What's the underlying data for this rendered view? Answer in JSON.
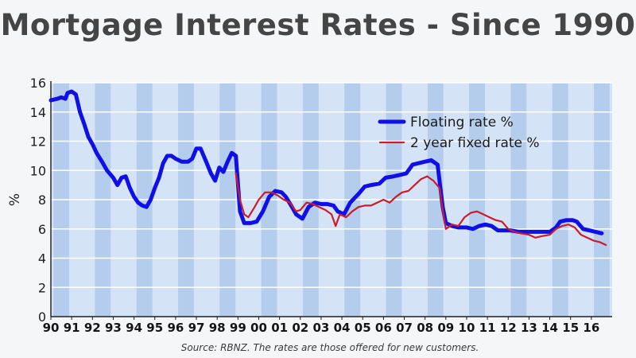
{
  "chart_data": {
    "type": "line",
    "title": "Mortgage Interest Rates - Since 1990",
    "ylabel": "%",
    "xlabel": "",
    "ylim": [
      0,
      16
    ],
    "xlim": [
      1990,
      2017
    ],
    "y_ticks": [
      "0",
      "2",
      "4",
      "6",
      "8",
      "10",
      "12",
      "14",
      "16"
    ],
    "x_tick_labels": [
      "90",
      "91",
      "92",
      "93",
      "94",
      "95",
      "96",
      "97",
      "98",
      "99",
      "00",
      "01",
      "02",
      "03",
      "04",
      "05",
      "06",
      "07",
      "08",
      "09",
      "10",
      "11",
      "12",
      "13",
      "14",
      "15",
      "16"
    ],
    "grid": true,
    "legend_position": "top-right",
    "source": "Source: RBNZ. The rates are those offered for new customers.",
    "series": [
      {
        "name": "Floating rate %",
        "color": "#1010e6",
        "points": [
          [
            1990.0,
            14.8
          ],
          [
            1990.3,
            14.9
          ],
          [
            1990.5,
            15.0
          ],
          [
            1990.7,
            14.9
          ],
          [
            1990.8,
            15.3
          ],
          [
            1991.0,
            15.4
          ],
          [
            1991.2,
            15.2
          ],
          [
            1991.4,
            14.0
          ],
          [
            1991.6,
            13.2
          ],
          [
            1991.8,
            12.3
          ],
          [
            1992.0,
            11.8
          ],
          [
            1992.2,
            11.2
          ],
          [
            1992.5,
            10.5
          ],
          [
            1992.7,
            10.0
          ],
          [
            1993.0,
            9.5
          ],
          [
            1993.2,
            9.0
          ],
          [
            1993.4,
            9.5
          ],
          [
            1993.6,
            9.6
          ],
          [
            1993.8,
            8.8
          ],
          [
            1994.0,
            8.2
          ],
          [
            1994.2,
            7.8
          ],
          [
            1994.4,
            7.6
          ],
          [
            1994.6,
            7.5
          ],
          [
            1994.8,
            8.0
          ],
          [
            1995.0,
            8.8
          ],
          [
            1995.2,
            9.5
          ],
          [
            1995.4,
            10.5
          ],
          [
            1995.6,
            11.0
          ],
          [
            1995.8,
            11.0
          ],
          [
            1996.0,
            10.8
          ],
          [
            1996.3,
            10.6
          ],
          [
            1996.6,
            10.6
          ],
          [
            1996.8,
            10.8
          ],
          [
            1997.0,
            11.5
          ],
          [
            1997.2,
            11.5
          ],
          [
            1997.5,
            10.5
          ],
          [
            1997.7,
            9.8
          ],
          [
            1997.9,
            9.3
          ],
          [
            1998.1,
            10.2
          ],
          [
            1998.3,
            9.9
          ],
          [
            1998.5,
            10.6
          ],
          [
            1998.7,
            11.2
          ],
          [
            1998.9,
            11.0
          ],
          [
            1999.1,
            7.2
          ],
          [
            1999.3,
            6.4
          ],
          [
            1999.6,
            6.4
          ],
          [
            1999.9,
            6.5
          ],
          [
            2000.2,
            7.2
          ],
          [
            2000.5,
            8.2
          ],
          [
            2000.8,
            8.6
          ],
          [
            2001.1,
            8.5
          ],
          [
            2001.3,
            8.2
          ],
          [
            2001.6,
            7.5
          ],
          [
            2001.8,
            7.0
          ],
          [
            2002.1,
            6.7
          ],
          [
            2002.4,
            7.5
          ],
          [
            2002.7,
            7.8
          ],
          [
            2003.0,
            7.7
          ],
          [
            2003.3,
            7.7
          ],
          [
            2003.6,
            7.6
          ],
          [
            2003.8,
            7.2
          ],
          [
            2004.1,
            7.0
          ],
          [
            2004.4,
            7.8
          ],
          [
            2004.8,
            8.4
          ],
          [
            2005.1,
            8.9
          ],
          [
            2005.4,
            9.0
          ],
          [
            2005.8,
            9.1
          ],
          [
            2006.1,
            9.5
          ],
          [
            2006.5,
            9.6
          ],
          [
            2006.8,
            9.7
          ],
          [
            2007.1,
            9.8
          ],
          [
            2007.4,
            10.4
          ],
          [
            2007.7,
            10.5
          ],
          [
            2008.0,
            10.6
          ],
          [
            2008.3,
            10.7
          ],
          [
            2008.6,
            10.4
          ],
          [
            2008.85,
            7.5
          ],
          [
            2009.0,
            6.4
          ],
          [
            2009.3,
            6.2
          ],
          [
            2009.6,
            6.1
          ],
          [
            2010.0,
            6.1
          ],
          [
            2010.3,
            6.0
          ],
          [
            2010.6,
            6.2
          ],
          [
            2010.9,
            6.3
          ],
          [
            2011.2,
            6.2
          ],
          [
            2011.5,
            5.9
          ],
          [
            2011.8,
            5.9
          ],
          [
            2012.1,
            5.9
          ],
          [
            2012.5,
            5.8
          ],
          [
            2013.0,
            5.8
          ],
          [
            2013.5,
            5.8
          ],
          [
            2014.0,
            5.8
          ],
          [
            2014.3,
            6.1
          ],
          [
            2014.5,
            6.5
          ],
          [
            2014.8,
            6.6
          ],
          [
            2015.1,
            6.6
          ],
          [
            2015.3,
            6.5
          ],
          [
            2015.6,
            6.0
          ],
          [
            2015.9,
            5.9
          ],
          [
            2016.2,
            5.8
          ],
          [
            2016.5,
            5.7
          ]
        ]
      },
      {
        "name": "2 year fixed rate %",
        "color": "#cc1b2a",
        "points": [
          [
            1998.9,
            9.8
          ],
          [
            1999.1,
            8.0
          ],
          [
            1999.3,
            7.0
          ],
          [
            1999.5,
            6.8
          ],
          [
            1999.8,
            7.5
          ],
          [
            2000.0,
            8.0
          ],
          [
            2000.3,
            8.5
          ],
          [
            2000.6,
            8.5
          ],
          [
            2000.9,
            8.3
          ],
          [
            2001.2,
            8.0
          ],
          [
            2001.5,
            7.8
          ],
          [
            2001.8,
            7.2
          ],
          [
            2002.0,
            7.3
          ],
          [
            2002.3,
            7.8
          ],
          [
            2002.6,
            7.7
          ],
          [
            2002.9,
            7.5
          ],
          [
            2003.2,
            7.3
          ],
          [
            2003.5,
            7.0
          ],
          [
            2003.7,
            6.2
          ],
          [
            2003.9,
            7.0
          ],
          [
            2004.2,
            6.8
          ],
          [
            2004.5,
            7.2
          ],
          [
            2004.8,
            7.5
          ],
          [
            2005.1,
            7.6
          ],
          [
            2005.4,
            7.6
          ],
          [
            2005.7,
            7.8
          ],
          [
            2006.0,
            8.0
          ],
          [
            2006.3,
            7.8
          ],
          [
            2006.6,
            8.2
          ],
          [
            2006.9,
            8.5
          ],
          [
            2007.2,
            8.6
          ],
          [
            2007.5,
            9.0
          ],
          [
            2007.8,
            9.4
          ],
          [
            2008.1,
            9.6
          ],
          [
            2008.4,
            9.3
          ],
          [
            2008.7,
            8.8
          ],
          [
            2008.9,
            6.8
          ],
          [
            2009.0,
            6.0
          ],
          [
            2009.3,
            6.3
          ],
          [
            2009.6,
            6.2
          ],
          [
            2009.9,
            6.8
          ],
          [
            2010.2,
            7.1
          ],
          [
            2010.5,
            7.2
          ],
          [
            2010.8,
            7.0
          ],
          [
            2011.1,
            6.8
          ],
          [
            2011.4,
            6.6
          ],
          [
            2011.7,
            6.5
          ],
          [
            2012.0,
            6.0
          ],
          [
            2012.3,
            5.8
          ],
          [
            2012.6,
            5.7
          ],
          [
            2013.0,
            5.6
          ],
          [
            2013.3,
            5.4
          ],
          [
            2013.6,
            5.5
          ],
          [
            2014.0,
            5.6
          ],
          [
            2014.3,
            6.0
          ],
          [
            2014.6,
            6.2
          ],
          [
            2014.9,
            6.3
          ],
          [
            2015.2,
            6.1
          ],
          [
            2015.5,
            5.6
          ],
          [
            2015.8,
            5.4
          ],
          [
            2016.1,
            5.2
          ],
          [
            2016.4,
            5.1
          ],
          [
            2016.7,
            4.9
          ]
        ]
      }
    ]
  }
}
